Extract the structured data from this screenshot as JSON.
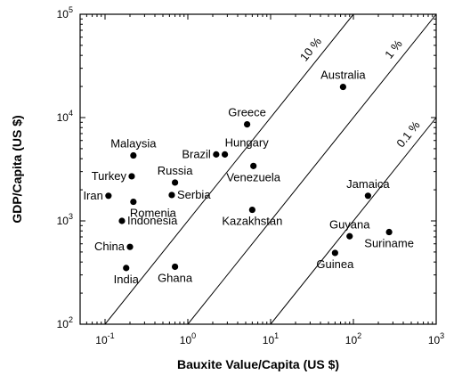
{
  "chart_data": {
    "type": "scatter",
    "xlabel": "Bauxite Value/Capita (US $)",
    "ylabel": "GDP/Capita (US $)",
    "x_scale": "log",
    "y_scale": "log",
    "xlim": [
      0.05,
      1000
    ],
    "ylim": [
      100,
      100000
    ],
    "x_ticks": [
      {
        "value": 0.1,
        "base": "10",
        "exp": "-1"
      },
      {
        "value": 1,
        "base": "10",
        "exp": "0"
      },
      {
        "value": 10,
        "base": "10",
        "exp": "1"
      },
      {
        "value": 100,
        "base": "10",
        "exp": "2"
      },
      {
        "value": 1000,
        "base": "10",
        "exp": "3"
      }
    ],
    "y_ticks": [
      {
        "value": 100,
        "base": "10",
        "exp": "2"
      },
      {
        "value": 1000,
        "base": "10",
        "exp": "3"
      },
      {
        "value": 10000,
        "base": "10",
        "exp": "4"
      },
      {
        "value": 100000,
        "base": "10",
        "exp": "5"
      }
    ],
    "points": [
      {
        "name": "Australia",
        "x": 75,
        "y": 19800,
        "label_pos": "above"
      },
      {
        "name": "Greece",
        "x": 5.2,
        "y": 8600,
        "label_pos": "above"
      },
      {
        "name": "Malaysia",
        "x": 0.22,
        "y": 4300,
        "label_pos": "above"
      },
      {
        "name": "Brazil",
        "x": 2.2,
        "y": 4400,
        "label_pos": "left"
      },
      {
        "name": "Hungary",
        "x": 2.8,
        "y": 4400,
        "label_pos": "above-right"
      },
      {
        "name": "Turkey",
        "x": 0.21,
        "y": 2700,
        "label_pos": "left"
      },
      {
        "name": "Russia",
        "x": 0.7,
        "y": 2350,
        "label_pos": "above"
      },
      {
        "name": "Venezuela",
        "x": 6.2,
        "y": 3400,
        "label_pos": "below"
      },
      {
        "name": "Iran",
        "x": 0.11,
        "y": 1750,
        "label_pos": "left"
      },
      {
        "name": "Serbia",
        "x": 0.64,
        "y": 1780,
        "label_pos": "right"
      },
      {
        "name": "Romenia",
        "x": 0.22,
        "y": 1530,
        "label_pos": "below-right"
      },
      {
        "name": "Indonesia",
        "x": 0.16,
        "y": 1000,
        "label_pos": "right"
      },
      {
        "name": "Kazakhstan",
        "x": 6.0,
        "y": 1280,
        "label_pos": "below"
      },
      {
        "name": "Jamaica",
        "x": 150,
        "y": 1750,
        "label_pos": "above"
      },
      {
        "name": "China",
        "x": 0.2,
        "y": 560,
        "label_pos": "left"
      },
      {
        "name": "Guyana",
        "x": 90,
        "y": 710,
        "label_pos": "above"
      },
      {
        "name": "Suriname",
        "x": 270,
        "y": 780,
        "label_pos": "below"
      },
      {
        "name": "Guinea",
        "x": 60,
        "y": 490,
        "label_pos": "below"
      },
      {
        "name": "India",
        "x": 0.18,
        "y": 350,
        "label_pos": "below"
      },
      {
        "name": "Ghana",
        "x": 0.7,
        "y": 360,
        "label_pos": "below"
      }
    ],
    "reference_lines": [
      {
        "label": "0.1 %",
        "ratio": 0.1
      },
      {
        "label": "1 %",
        "ratio": 0.01
      },
      {
        "label": "10 %",
        "ratio": 0.001
      }
    ],
    "grid": false,
    "legend": "none"
  }
}
